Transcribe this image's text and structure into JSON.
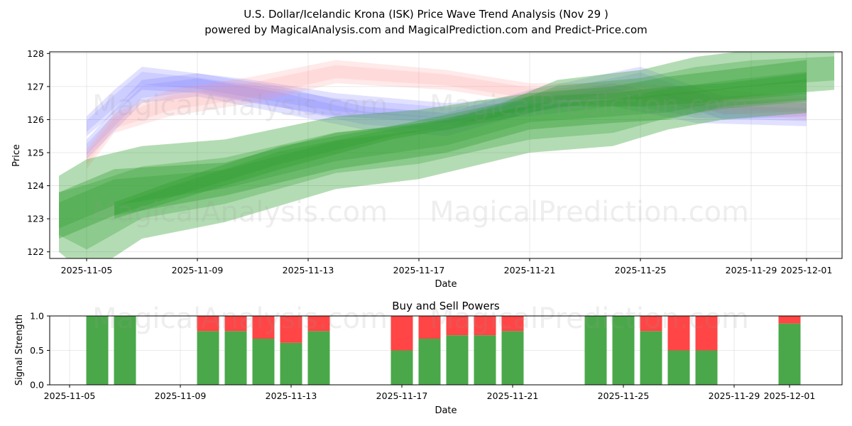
{
  "chart_data": [
    {
      "type": "area",
      "title": "U.S. Dollar/Icelandic Krona (ISK) Price Wave Trend Analysis (Nov 29 )",
      "subtitle": "powered by MagicalAnalysis.com and MagicalPrediction.com and Predict-Price.com",
      "xlabel": "Date",
      "ylabel": "Price",
      "xlim": [
        "2025-11-04",
        "2025-12-02"
      ],
      "ylim": [
        121.8,
        128.05
      ],
      "yticks": [
        122,
        123,
        124,
        125,
        126,
        127,
        128
      ],
      "xticks": [
        "2025-11-05",
        "2025-11-09",
        "2025-11-13",
        "2025-11-17",
        "2025-11-21",
        "2025-11-25",
        "2025-11-29",
        "2025-12-01"
      ],
      "grid": true,
      "watermarks": [
        "MagicalAnalysis.com",
        "MagicalPrediction.com"
      ],
      "colors": {
        "blue": "#6b6bff",
        "red": "#ff8f8f",
        "green": "#2e9e2e"
      },
      "series": [
        {
          "name": "green-wave-1",
          "color": "green",
          "x": [
            "2025-11-04",
            "2025-11-05",
            "2025-11-07",
            "2025-11-10",
            "2025-11-14",
            "2025-11-17",
            "2025-11-21",
            "2025-11-24",
            "2025-11-26",
            "2025-11-28",
            "2025-12-01"
          ],
          "upper": [
            124.3,
            124.8,
            125.2,
            125.4,
            126.1,
            126.3,
            126.8,
            127.0,
            127.3,
            127.5,
            127.8
          ],
          "lower": [
            122.0,
            121.3,
            122.4,
            122.9,
            123.9,
            124.2,
            125.0,
            125.2,
            125.7,
            126.0,
            126.2
          ]
        },
        {
          "name": "green-wave-2",
          "color": "green",
          "x": [
            "2025-11-04",
            "2025-11-06",
            "2025-11-10",
            "2025-11-14",
            "2025-11-18",
            "2025-11-21",
            "2025-11-24",
            "2025-11-26",
            "2025-11-28",
            "2025-12-01"
          ],
          "upper": [
            123.8,
            124.5,
            124.7,
            125.6,
            126.0,
            126.7,
            126.8,
            127.0,
            127.1,
            127.4
          ],
          "lower": [
            122.4,
            123.1,
            123.7,
            124.5,
            125.0,
            125.7,
            125.9,
            126.0,
            126.4,
            126.6
          ]
        },
        {
          "name": "green-wave-3",
          "color": "green",
          "x": [
            "2025-11-06",
            "2025-11-08",
            "2025-11-12",
            "2025-11-16",
            "2025-11-20",
            "2025-11-22",
            "2025-11-25",
            "2025-11-27",
            "2025-11-29",
            "2025-12-02"
          ],
          "upper": [
            123.5,
            124.1,
            125.2,
            125.8,
            126.5,
            127.2,
            127.5,
            127.9,
            128.1,
            128.2
          ],
          "lower": [
            123.0,
            123.5,
            124.5,
            125.4,
            126.0,
            126.4,
            126.4,
            126.5,
            126.7,
            126.9
          ]
        },
        {
          "name": "blue-wave-1",
          "color": "blue",
          "x": [
            "2025-11-05",
            "2025-11-06",
            "2025-11-07",
            "2025-11-09",
            "2025-11-11",
            "2025-11-14",
            "2025-11-18",
            "2025-11-21",
            "2025-11-24",
            "2025-11-27",
            "2025-12-01"
          ],
          "upper": [
            126.1,
            126.9,
            127.6,
            127.4,
            127.2,
            126.8,
            126.5,
            126.7,
            127.1,
            126.6,
            126.5
          ],
          "lower": [
            125.5,
            126.2,
            126.9,
            126.8,
            126.5,
            126.1,
            125.9,
            126.1,
            126.4,
            125.9,
            125.8
          ]
        },
        {
          "name": "blue-wave-2",
          "color": "blue",
          "x": [
            "2025-11-05",
            "2025-11-07",
            "2025-11-09",
            "2025-11-12",
            "2025-11-15",
            "2025-11-18",
            "2025-11-21",
            "2025-11-25",
            "2025-11-28",
            "2025-12-01"
          ],
          "upper": [
            125.4,
            127.2,
            127.4,
            127.0,
            126.4,
            126.2,
            126.9,
            127.6,
            126.7,
            126.8
          ],
          "lower": [
            124.8,
            126.5,
            126.7,
            126.2,
            125.7,
            125.5,
            126.2,
            126.8,
            126.0,
            126.1
          ]
        },
        {
          "name": "red-wave-1",
          "color": "red",
          "x": [
            "2025-11-05",
            "2025-11-06",
            "2025-11-08",
            "2025-11-11",
            "2025-11-14",
            "2025-11-18",
            "2025-11-21",
            "2025-11-25",
            "2025-11-28",
            "2025-12-01"
          ],
          "upper": [
            125.1,
            126.2,
            126.9,
            127.3,
            127.8,
            127.5,
            127.1,
            127.1,
            126.9,
            126.7
          ],
          "lower": [
            124.5,
            125.6,
            126.1,
            126.5,
            127.1,
            126.9,
            126.5,
            126.4,
            126.2,
            126.0
          ]
        }
      ]
    },
    {
      "type": "bar",
      "title": "Buy and Sell Powers",
      "xlabel": "Date",
      "ylabel": "Signal Strength",
      "ylim": [
        0,
        1.0
      ],
      "yticks": [
        "0.0",
        "0.5",
        "1.0"
      ],
      "xticks": [
        "2025-11-05",
        "2025-11-09",
        "2025-11-13",
        "2025-11-17",
        "2025-11-21",
        "2025-11-25",
        "2025-11-29",
        "2025-12-01"
      ],
      "colors": {
        "buy": "#4aa84a",
        "sell": "#ff4545"
      },
      "categories": [
        "2025-11-06",
        "2025-11-07",
        "2025-11-10",
        "2025-11-11",
        "2025-11-12",
        "2025-11-13",
        "2025-11-14",
        "2025-11-17",
        "2025-11-18",
        "2025-11-19",
        "2025-11-20",
        "2025-11-21",
        "2025-11-24",
        "2025-11-25",
        "2025-11-26",
        "2025-11-27",
        "2025-11-28",
        "2025-12-01"
      ],
      "series": [
        {
          "name": "Buy",
          "values": [
            1.0,
            1.0,
            0.78,
            0.78,
            0.67,
            0.61,
            0.78,
            0.5,
            0.67,
            0.72,
            0.72,
            0.78,
            1.0,
            1.0,
            0.78,
            0.5,
            0.5,
            0.89
          ]
        },
        {
          "name": "Sell",
          "values": [
            0.0,
            0.0,
            0.22,
            0.22,
            0.33,
            0.39,
            0.22,
            0.5,
            0.33,
            0.28,
            0.28,
            0.22,
            0.0,
            0.0,
            0.22,
            0.5,
            0.5,
            0.11
          ]
        }
      ]
    }
  ]
}
